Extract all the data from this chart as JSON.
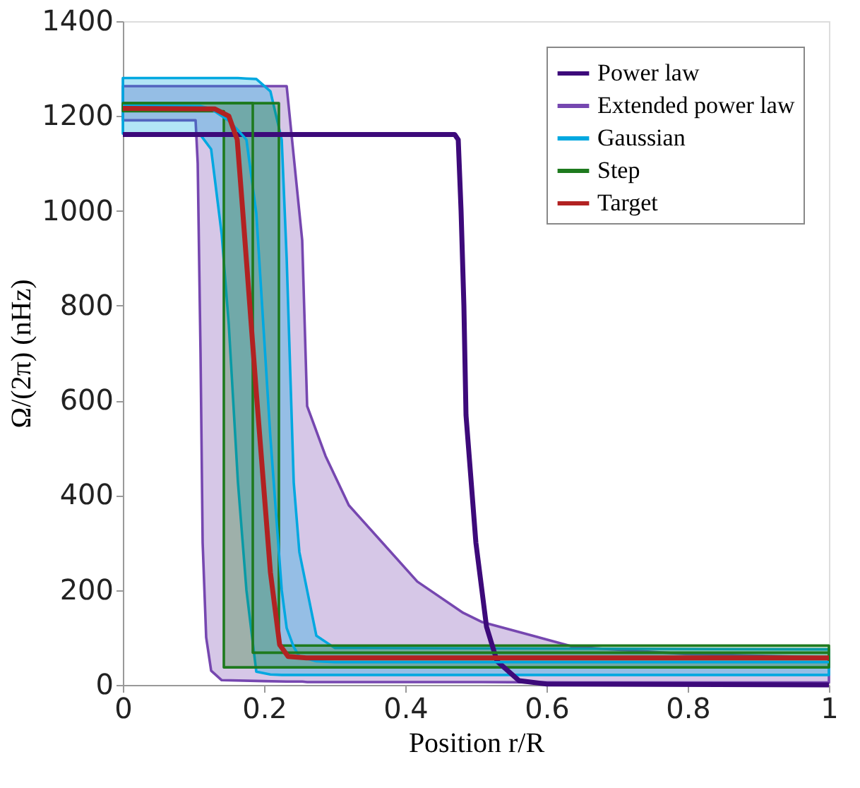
{
  "chart_data": {
    "type": "line",
    "xlabel": "Position r/R",
    "ylabel": "Ω/(2π) (nHz)",
    "xlim": [
      0,
      1
    ],
    "xticks": [
      0,
      0.2,
      0.4,
      0.6,
      0.8,
      1
    ],
    "ylim": [
      0,
      1400
    ],
    "yticks": [
      0,
      200,
      400,
      600,
      800,
      1000,
      1200,
      1400
    ],
    "grid": false,
    "legend": "top right",
    "line_style": "solid",
    "marker": "none",
    "series": [
      {
        "name": "Power law",
        "color": "#3d0a7a",
        "x": [
          0,
          0.47,
          0.475,
          0.479,
          0.483,
          0.486,
          0.5,
          0.515,
          0.53,
          0.561,
          0.6,
          1
        ],
        "values": [
          1161,
          1161,
          1150,
          1000,
          800,
          569,
          300,
          123,
          50,
          9,
          2,
          0
        ]
      },
      {
        "name": "Extended power law",
        "color": "#7647b0",
        "x": [
          0,
          0.103,
          0.106,
          0.11,
          0.113,
          0.118,
          0.125,
          0.14,
          0.2,
          0.232,
          0.243,
          0.254,
          0.261,
          0.287,
          0.32,
          0.417,
          0.482,
          0.508,
          0.639,
          0.8,
          1
        ],
        "values": [
          null,
          null,
          null,
          null,
          null,
          null,
          null,
          null,
          null,
          null,
          null,
          null,
          null,
          null,
          null,
          null,
          null,
          null,
          null,
          null,
          null
        ],
        "lower": [
          1191,
          1191,
          1100,
          700,
          300,
          100,
          30,
          10,
          8,
          7,
          7,
          7,
          6,
          6,
          6,
          6,
          6,
          6,
          5,
          5,
          5
        ],
        "upper": [
          1263,
          1263,
          1263,
          1263,
          1263,
          1263,
          1263,
          1263,
          1263,
          1263,
          1100,
          938,
          588,
          483,
          379,
          218,
          152,
          133,
          80,
          65,
          58
        ]
      },
      {
        "name": "Gaussian",
        "color": "#00a8e0",
        "x": [
          0,
          0.11,
          0.125,
          0.14,
          0.15,
          0.163,
          0.175,
          0.189,
          0.209,
          0.225,
          0.232,
          0.242,
          0.25,
          0.274,
          0.3,
          1
        ],
        "values": [
          1222,
          1221,
          1215,
          1200,
          1190,
          1170,
          1150,
          995,
          521,
          200,
          120,
          80,
          60,
          50,
          48,
          48
        ],
        "lower": [
          1163,
          1160,
          1130,
          950,
          760,
          427,
          200,
          28,
          22,
          21,
          21,
          21,
          21,
          21,
          21,
          21
        ],
        "upper": [
          1280,
          1280,
          1280,
          1280,
          1280,
          1280,
          1279,
          1278,
          1252,
          1150,
          900,
          427,
          280,
          104,
          78,
          75
        ]
      },
      {
        "name": "Step",
        "color": "#1e7a1e",
        "x": [
          0,
          0.143,
          0.143,
          0.184,
          0.184,
          0.221,
          0.221,
          1
        ],
        "values": [
          1227,
          1227,
          1227,
          1227,
          68,
          68,
          68,
          68
        ],
        "lower": [
          1210,
          1210,
          37,
          37,
          37,
          37,
          37,
          37
        ],
        "upper": [
          1227,
          1227,
          1227,
          1227,
          1227,
          1227,
          83,
          83
        ]
      },
      {
        "name": "Target",
        "color": "#b22222",
        "x": [
          0,
          0.13,
          0.15,
          0.162,
          0.17,
          0.189,
          0.209,
          0.222,
          0.234,
          0.26,
          1
        ],
        "values": [
          1216,
          1215,
          1200,
          1150,
          995,
          617,
          237,
          85,
          60,
          57,
          57
        ]
      }
    ]
  }
}
